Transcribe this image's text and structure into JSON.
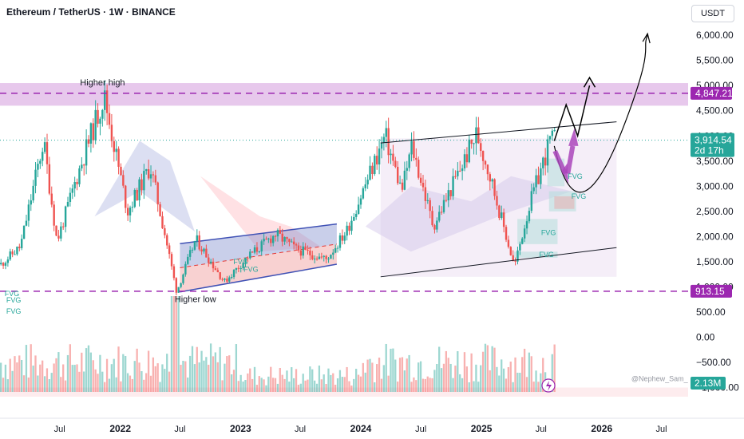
{
  "header": {
    "title": "Ethereum / TetherUS · 1W · BINANCE",
    "currency": "USDT"
  },
  "watermark": "@Nephew_Sam_",
  "colors": {
    "up": "#26a69a",
    "down": "#ef5350",
    "level": "#9c27b0",
    "zone": "#dfb6e6",
    "channel": "#131722"
  },
  "chart_data": {
    "type": "candlestick",
    "symbol": "ETHUSDT",
    "interval": "1W",
    "ylim": [
      -1150,
      6700
    ],
    "y_ticks": [
      6000,
      5500,
      5000,
      4500,
      4000,
      3500,
      3000,
      2500,
      2000,
      1500,
      1000,
      500,
      0,
      -500,
      -1000
    ],
    "y_tick_labels": [
      "6,000.00",
      "5,500.00",
      "5,000.00",
      "4,500.00",
      "4,000.00",
      "3,500.00",
      "3,000.00",
      "2,500.00",
      "2,000.00",
      "1,500.00",
      "1,000.00",
      "500.00",
      "0.00",
      "−500.00",
      "−1,000.00"
    ],
    "x_ticks": [
      {
        "label": "Jul",
        "date": "2021-07-01",
        "bold": false
      },
      {
        "label": "2022",
        "date": "2022-01-01",
        "bold": true
      },
      {
        "label": "Jul",
        "date": "2022-07-01",
        "bold": false
      },
      {
        "label": "2023",
        "date": "2023-01-01",
        "bold": true
      },
      {
        "label": "Jul",
        "date": "2023-07-01",
        "bold": false
      },
      {
        "label": "2024",
        "date": "2024-01-01",
        "bold": true
      },
      {
        "label": "Jul",
        "date": "2024-07-01",
        "bold": false
      },
      {
        "label": "2025",
        "date": "2025-01-01",
        "bold": true
      },
      {
        "label": "Jul",
        "date": "2025-07-01",
        "bold": false
      },
      {
        "label": "2026",
        "date": "2026-01-01",
        "bold": true
      },
      {
        "label": "Jul",
        "date": "2026-07-01",
        "bold": false
      }
    ],
    "price_path": [
      [
        "2021-01-01",
        1450
      ],
      [
        "2021-03-01",
        1800
      ],
      [
        "2021-05-10",
        3900
      ],
      [
        "2021-06-20",
        1900
      ],
      [
        "2021-08-20",
        3200
      ],
      [
        "2021-11-10",
        4800
      ],
      [
        "2022-01-20",
        2500
      ],
      [
        "2022-03-30",
        3400
      ],
      [
        "2022-05-15",
        2000
      ],
      [
        "2022-06-18",
        900
      ],
      [
        "2022-08-15",
        1950
      ],
      [
        "2022-11-10",
        1100
      ],
      [
        "2023-01-20",
        1600
      ],
      [
        "2023-04-15",
        2050
      ],
      [
        "2023-06-15",
        1750
      ],
      [
        "2023-09-15",
        1550
      ],
      [
        "2023-11-15",
        2100
      ],
      [
        "2024-03-12",
        4000
      ],
      [
        "2024-05-01",
        2900
      ],
      [
        "2024-06-01",
        3800
      ],
      [
        "2024-08-05",
        2200
      ],
      [
        "2024-12-15",
        4050
      ],
      [
        "2025-01-20",
        3300
      ],
      [
        "2025-04-08",
        1400
      ],
      [
        "2025-05-25",
        2650
      ],
      [
        "2025-07-25",
        3900
      ],
      [
        "2025-08-10",
        3914
      ]
    ],
    "levels": [
      {
        "name": "Higher high",
        "price": 4847.21,
        "label": "4,847.21"
      },
      {
        "name": "Higher low",
        "price": 913.15,
        "label": "913.15"
      }
    ],
    "last_price": {
      "value": 3914.54,
      "label": "3,914.54",
      "countdown": "2d 17h"
    },
    "supply_zone": {
      "low": 4600,
      "high": 5050
    },
    "volume_label": "2.13M",
    "annotations": [
      "Higher high",
      "Higher low"
    ],
    "fvg_labels": [
      "FVG",
      "FVG",
      "FVG",
      "FVG",
      "FVG",
      "FVG",
      "FVG",
      "FVG",
      "FVG"
    ],
    "channel_2023": {
      "start": "2022-07-01",
      "end": "2023-10-20",
      "upper": [
        1860,
        2250
      ],
      "lower": [
        900,
        1450
      ]
    },
    "channel_2024": {
      "start": "2024-03-01",
      "end": "2026-02-15",
      "upper": [
        3860,
        4280
      ],
      "lower": [
        1200,
        1780
      ]
    },
    "projection": [
      [
        "2025-08-10",
        3900
      ],
      [
        "2025-09-15",
        4620
      ],
      [
        "2025-10-20",
        4000
      ],
      [
        "2025-11-25",
        5000
      ]
    ],
    "projection_curve": [
      [
        "2025-08-10",
        3800
      ],
      [
        "2025-10-01",
        2950
      ],
      [
        "2025-12-15",
        3050
      ],
      [
        "2026-03-15",
        4300
      ],
      [
        "2026-05-20",
        6000
      ]
    ]
  }
}
